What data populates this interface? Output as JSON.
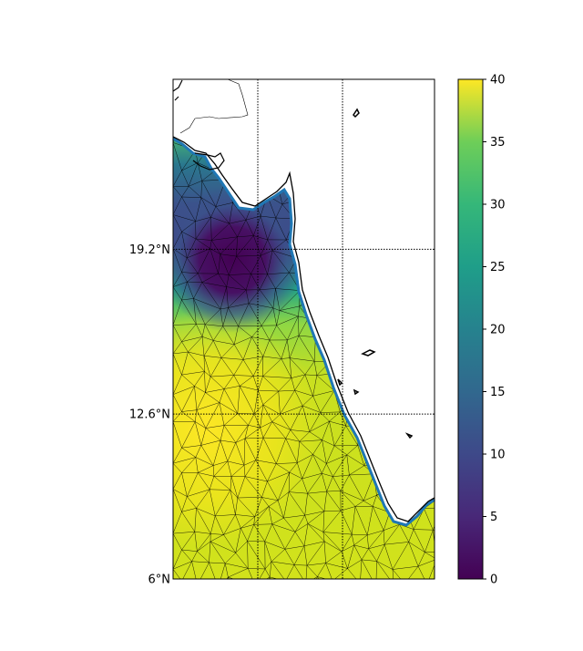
{
  "map": {
    "lat_range": [
      6.0,
      26.0
    ],
    "lon_range": [
      66.5,
      77.3
    ],
    "lat_ticks": [
      {
        "value": 19.2,
        "label": "19.2°N"
      },
      {
        "value": 12.6,
        "label": "12.6°N"
      },
      {
        "value": 6.0,
        "label": "6°N"
      }
    ],
    "lon_gridlines": [
      70.0,
      73.5
    ],
    "field_min_color": "#440154",
    "coastline_color": "#000000",
    "boundary_color": "#1f77b4"
  },
  "colorbar": {
    "min": 0,
    "max": 40,
    "ticks": [
      {
        "value": 0,
        "label": "0"
      },
      {
        "value": 5,
        "label": "5"
      },
      {
        "value": 10,
        "label": "10"
      },
      {
        "value": 15,
        "label": "15"
      },
      {
        "value": 20,
        "label": "20"
      },
      {
        "value": 25,
        "label": "25"
      },
      {
        "value": 30,
        "label": "30"
      },
      {
        "value": 35,
        "label": "35"
      },
      {
        "value": 40,
        "label": "40"
      }
    ],
    "colormap": "viridis"
  }
}
